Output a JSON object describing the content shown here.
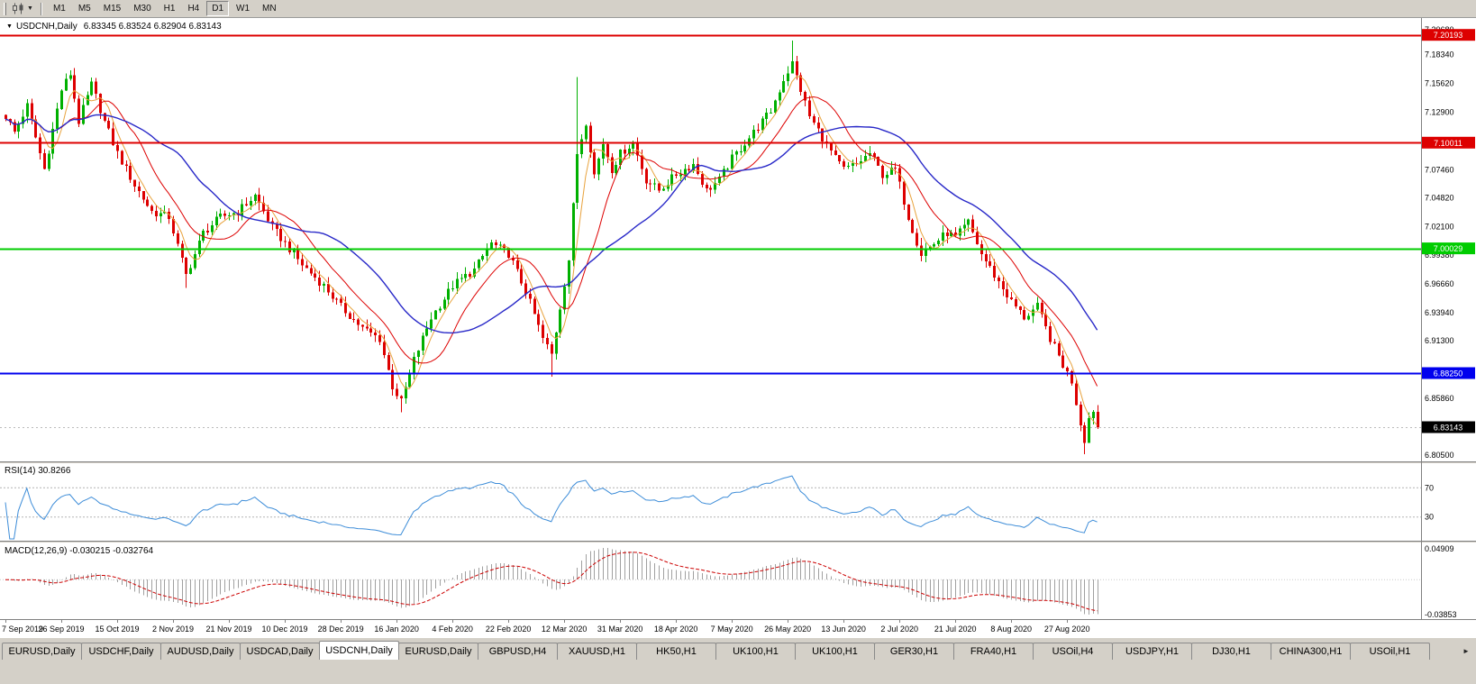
{
  "colors": {
    "window_bg": "#d4d0c8",
    "chart_bg": "#ffffff",
    "up": "#00b000",
    "down": "#dd0000",
    "axis_text": "#000000"
  },
  "toolbar": {
    "timeframes": [
      "M1",
      "M5",
      "M15",
      "M30",
      "H1",
      "H4",
      "D1",
      "W1",
      "MN"
    ],
    "active": "D1"
  },
  "chart": {
    "header_title": "USDCNH,Daily",
    "header_ohlc": "6.83345 6.83524 6.82904 6.83143",
    "rsi_label": "RSI(14) 30.8266",
    "macd_label": "MACD(12,26,9) -0.030215 -0.032764"
  },
  "chart_data": {
    "type": "candlestick",
    "symbol": "USDCNH",
    "period": "Daily",
    "last_bar": {
      "open": 6.83345,
      "high": 6.83524,
      "low": 6.82904,
      "close": 6.83143
    },
    "candle_count": 255,
    "price_anchors": [
      [
        0,
        7.125
      ],
      [
        2,
        7.11
      ],
      [
        5,
        7.135
      ],
      [
        9,
        7.075
      ],
      [
        13,
        7.15
      ],
      [
        15,
        7.165
      ],
      [
        17,
        7.12
      ],
      [
        20,
        7.155
      ],
      [
        23,
        7.12
      ],
      [
        26,
        7.09
      ],
      [
        30,
        7.06
      ],
      [
        34,
        7.035
      ],
      [
        38,
        7.03
      ],
      [
        42,
        6.975
      ],
      [
        46,
        7.015
      ],
      [
        50,
        7.03
      ],
      [
        54,
        7.035
      ],
      [
        58,
        7.05
      ],
      [
        62,
        7.02
      ],
      [
        65,
        7.005
      ],
      [
        69,
        6.985
      ],
      [
        74,
        6.965
      ],
      [
        78,
        6.945
      ],
      [
        83,
        6.925
      ],
      [
        87,
        6.915
      ],
      [
        90,
        6.87
      ],
      [
        92,
        6.855
      ],
      [
        95,
        6.895
      ],
      [
        99,
        6.935
      ],
      [
        104,
        6.965
      ],
      [
        109,
        6.98
      ],
      [
        113,
        7.005
      ],
      [
        117,
        6.995
      ],
      [
        121,
        6.96
      ],
      [
        125,
        6.915
      ],
      [
        127,
        6.9
      ],
      [
        129,
        6.945
      ],
      [
        131,
        6.99
      ],
      [
        133,
        7.09
      ],
      [
        135,
        7.12
      ],
      [
        137,
        7.07
      ],
      [
        139,
        7.1
      ],
      [
        141,
        7.075
      ],
      [
        143,
        7.09
      ],
      [
        146,
        7.1
      ],
      [
        149,
        7.065
      ],
      [
        152,
        7.055
      ],
      [
        156,
        7.07
      ],
      [
        160,
        7.08
      ],
      [
        163,
        7.055
      ],
      [
        166,
        7.065
      ],
      [
        169,
        7.085
      ],
      [
        172,
        7.1
      ],
      [
        175,
        7.115
      ],
      [
        178,
        7.13
      ],
      [
        181,
        7.16
      ],
      [
        183,
        7.175
      ],
      [
        185,
        7.15
      ],
      [
        187,
        7.125
      ],
      [
        190,
        7.105
      ],
      [
        193,
        7.085
      ],
      [
        195,
        7.075
      ],
      [
        198,
        7.08
      ],
      [
        201,
        7.09
      ],
      [
        204,
        7.07
      ],
      [
        207,
        7.075
      ],
      [
        210,
        7.03
      ],
      [
        213,
        6.995
      ],
      [
        216,
        7.005
      ],
      [
        219,
        7.015
      ],
      [
        221,
        7.01
      ],
      [
        224,
        7.025
      ],
      [
        227,
        6.995
      ],
      [
        230,
        6.975
      ],
      [
        234,
        6.95
      ],
      [
        237,
        6.935
      ],
      [
        240,
        6.945
      ],
      [
        243,
        6.915
      ],
      [
        246,
        6.89
      ],
      [
        248,
        6.875
      ],
      [
        250,
        6.835
      ],
      [
        251,
        6.82
      ],
      [
        252,
        6.84
      ],
      [
        253,
        6.848
      ],
      [
        254,
        6.83143
      ]
    ],
    "spike_highs": [
      [
        133,
        7.162
      ],
      [
        183,
        7.1965
      ]
    ],
    "spike_lows": [
      [
        42,
        6.963
      ],
      [
        92,
        6.8455
      ],
      [
        127,
        6.879
      ],
      [
        213,
        6.988
      ],
      [
        251,
        6.806
      ]
    ],
    "levels": [
      {
        "label": "7.20193",
        "price": 7.20193,
        "color": "#dd0000"
      },
      {
        "label": "7.10011",
        "price": 7.10011,
        "color": "#dd0000"
      },
      {
        "label": "7.00029",
        "price": 7.00029,
        "color": "#00cc00"
      },
      {
        "label": "6.88250",
        "price": 6.8825,
        "color": "#0000ee"
      }
    ],
    "current_price": {
      "label": "6.83143",
      "price": 6.83143,
      "color": "#000000"
    },
    "price_axis_labels": [
      "7.20680",
      "7.18340",
      "7.15620",
      "7.12900",
      "7.07460",
      "7.04820",
      "7.02100",
      "6.99380",
      "6.96660",
      "6.93940",
      "6.91300",
      "6.85860",
      "6.80500"
    ],
    "date_labels": [
      "7 Sep 2019",
      "26 Sep 2019",
      "15 Oct 2019",
      "2 Nov 2019",
      "21 Nov 2019",
      "10 Dec 2019",
      "28 Dec 2019",
      "16 Jan 2020",
      "4 Feb 2020",
      "22 Feb 2020",
      "12 Mar 2020",
      "31 Mar 2020",
      "18 Apr 2020",
      "7 May 2020",
      "26 May 2020",
      "13 Jun 2020",
      "2 Jul 2020",
      "21 Jul 2020",
      "8 Aug 2020",
      "27 Aug 2020"
    ],
    "date_label_step": 13,
    "moving_averages": [
      {
        "period": 5,
        "color": "#e8a23c"
      },
      {
        "period": 13,
        "color": "#dd0000"
      },
      {
        "period": 30,
        "color": "#2828c8"
      }
    ],
    "rsi": {
      "period": 14,
      "value": 30.8266,
      "levels": [
        70,
        30
      ],
      "axis_labels": [
        "70",
        "30"
      ],
      "color": "#3c8cd8"
    },
    "macd": {
      "fast": 12,
      "slow": 26,
      "signal_period": 9,
      "value": -0.030215,
      "signal_value": -0.032764,
      "axis_labels": [
        "0.04909",
        "-0.03853"
      ],
      "hist_color": "#a0a0a0",
      "signal_color": "#cc0000"
    }
  },
  "tabs": {
    "items": [
      "EURUSD,Daily",
      "USDCHF,Daily",
      "AUDUSD,Daily",
      "USDCAD,Daily",
      "USDCNH,Daily",
      "EURUSD,Daily",
      "GBPUSD,H4",
      "XAUUSD,H1",
      "HK50,H1",
      "UK100,H1",
      "UK100,H1",
      "GER30,H1",
      "FRA40,H1",
      "USOil,H4",
      "USDJPY,H1",
      "DJ30,H1",
      "CHINA300,H1",
      "USOil,H1"
    ],
    "active_index": 4,
    "scroll_right_icon": "►"
  }
}
